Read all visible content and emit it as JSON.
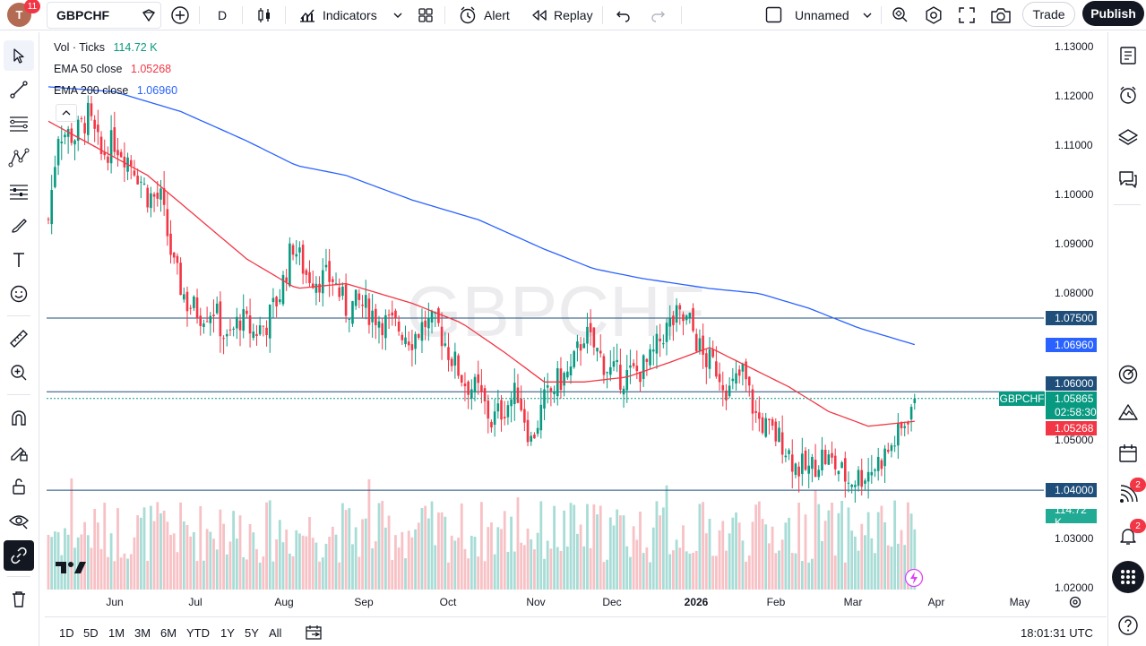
{
  "topbar": {
    "avatar_letter": "T",
    "notif_count": "11",
    "symbol": "GBPCHF",
    "interval": "D",
    "indicators_label": "Indicators",
    "alert_label": "Alert",
    "replay_label": "Replay",
    "layout_name": "Unnamed",
    "trade_label": "Trade",
    "publish_label": "Publish"
  },
  "legend": {
    "vol_label": "Vol · Ticks",
    "vol_value": "114.72 K",
    "ema50_label": "EMA 50 close",
    "ema50_value": "1.05268",
    "ema200_label": "EMA 200 close",
    "ema200_value": "1.06960"
  },
  "watermark": "GBPCHF",
  "price_axis": [
    "1.13000",
    "1.12000",
    "1.11000",
    "1.10000",
    "1.09000",
    "1.08000",
    "1.05000",
    "1.03000",
    "1.02000"
  ],
  "price_tags": {
    "level_1": "1.07500",
    "ema200": "1.06960",
    "level_2": "1.06000",
    "symbol_tag": "GBPCHF",
    "last_price": "1.05865",
    "countdown": "02:58:30",
    "ema50": "1.05268",
    "level_3": "1.04000",
    "volume": "114.72 K"
  },
  "time_axis": [
    "Jun",
    "Jul",
    "Aug",
    "Sep",
    "Oct",
    "Nov",
    "Dec",
    "2026",
    "Feb",
    "Mar",
    "Apr",
    "May"
  ],
  "bottombar": {
    "ranges": [
      "1D",
      "5D",
      "1M",
      "3M",
      "6M",
      "YTD",
      "1Y",
      "5Y",
      "All"
    ],
    "clock": "18:01:31 UTC"
  },
  "right_badges": {
    "ideas_count": "2",
    "notifications_count": "2"
  },
  "colors": {
    "up": "#089981",
    "down": "#f23645",
    "ema50": "#f23645",
    "ema200": "#2962ff",
    "hline": "#1e4e79",
    "vol_up": "#a8dcd6",
    "vol_down": "#f7c1c5"
  },
  "chart_data": {
    "type": "candlestick",
    "symbol": "GBPCHF",
    "interval": "D",
    "ylim": [
      1.02,
      1.13
    ],
    "horizontal_levels": [
      1.075,
      1.06,
      1.04
    ],
    "last_price": 1.05865,
    "ema50_last": 1.05268,
    "ema200_last": 1.0696,
    "volume_last": "114.72 K",
    "price_path": [
      [
        0,
        1.095
      ],
      [
        3,
        1.113
      ],
      [
        8,
        1.112
      ],
      [
        12,
        1.116
      ],
      [
        16,
        1.108
      ],
      [
        20,
        1.111
      ],
      [
        26,
        1.106
      ],
      [
        30,
        1.1
      ],
      [
        34,
        1.099
      ],
      [
        38,
        1.085
      ],
      [
        42,
        1.078
      ],
      [
        46,
        1.076
      ],
      [
        50,
        1.077
      ],
      [
        54,
        1.07
      ],
      [
        58,
        1.075
      ],
      [
        62,
        1.072
      ],
      [
        66,
        1.074
      ],
      [
        70,
        1.08
      ],
      [
        74,
        1.09
      ],
      [
        78,
        1.084
      ],
      [
        82,
        1.083
      ],
      [
        86,
        1.083
      ],
      [
        90,
        1.077
      ],
      [
        94,
        1.078
      ],
      [
        98,
        1.076
      ],
      [
        102,
        1.074
      ],
      [
        106,
        1.073
      ],
      [
        110,
        1.071
      ],
      [
        114,
        1.074
      ],
      [
        118,
        1.073
      ],
      [
        122,
        1.067
      ],
      [
        126,
        1.062
      ],
      [
        130,
        1.06
      ],
      [
        134,
        1.054
      ],
      [
        138,
        1.057
      ],
      [
        142,
        1.06
      ],
      [
        146,
        1.05
      ],
      [
        150,
        1.058
      ],
      [
        154,
        1.062
      ],
      [
        158,
        1.064
      ],
      [
        162,
        1.072
      ],
      [
        166,
        1.068
      ],
      [
        170,
        1.064
      ],
      [
        174,
        1.063
      ],
      [
        178,
        1.064
      ],
      [
        182,
        1.066
      ],
      [
        186,
        1.072
      ],
      [
        190,
        1.075
      ],
      [
        194,
        1.074
      ],
      [
        198,
        1.067
      ],
      [
        202,
        1.065
      ],
      [
        206,
        1.06
      ],
      [
        210,
        1.064
      ],
      [
        214,
        1.055
      ],
      [
        218,
        1.052
      ],
      [
        222,
        1.05
      ],
      [
        226,
        1.045
      ],
      [
        230,
        1.044
      ],
      [
        234,
        1.047
      ],
      [
        238,
        1.045
      ],
      [
        242,
        1.042
      ],
      [
        246,
        1.043
      ],
      [
        250,
        1.045
      ],
      [
        254,
        1.048
      ],
      [
        258,
        1.052
      ],
      [
        262,
        1.059
      ]
    ],
    "ema50_path": [
      [
        0,
        1.115
      ],
      [
        30,
        1.104
      ],
      [
        60,
        1.087
      ],
      [
        75,
        1.081
      ],
      [
        90,
        1.082
      ],
      [
        110,
        1.078
      ],
      [
        125,
        1.074
      ],
      [
        138,
        1.068
      ],
      [
        150,
        1.062
      ],
      [
        162,
        1.062
      ],
      [
        175,
        1.063
      ],
      [
        188,
        1.066
      ],
      [
        200,
        1.069
      ],
      [
        212,
        1.065
      ],
      [
        224,
        1.061
      ],
      [
        236,
        1.056
      ],
      [
        248,
        1.053
      ],
      [
        262,
        1.054
      ]
    ],
    "ema200_path": [
      [
        0,
        1.122
      ],
      [
        20,
        1.121
      ],
      [
        40,
        1.117
      ],
      [
        60,
        1.111
      ],
      [
        75,
        1.106
      ],
      [
        90,
        1.104
      ],
      [
        110,
        1.099
      ],
      [
        130,
        1.095
      ],
      [
        150,
        1.089
      ],
      [
        165,
        1.085
      ],
      [
        180,
        1.083
      ],
      [
        200,
        1.081
      ],
      [
        215,
        1.08
      ],
      [
        230,
        1.077
      ],
      [
        245,
        1.073
      ],
      [
        262,
        1.0696
      ]
    ]
  }
}
